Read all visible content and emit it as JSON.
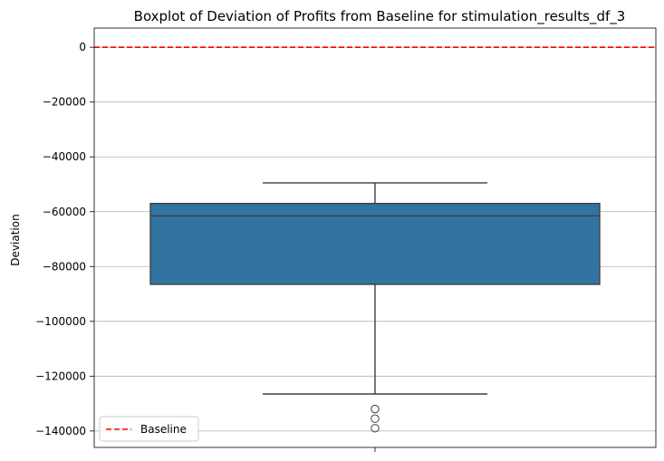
{
  "chart_data": {
    "type": "box",
    "title": "Boxplot of Deviation of Profits from Baseline for stimulation_results_df_3",
    "xlabel": "",
    "ylabel": "Deviation",
    "ylim": [
      -146000,
      7000
    ],
    "yticks": [
      0,
      -20000,
      -40000,
      -60000,
      -80000,
      -100000,
      -120000,
      -140000
    ],
    "ytick_labels": [
      "0",
      "−20000",
      "−40000",
      "−60000",
      "−80000",
      "−100000",
      "−120000",
      "−140000"
    ],
    "grid": "y",
    "box": {
      "whisker_high": -49500,
      "q3": -57000,
      "median": -61500,
      "q1": -86500,
      "whisker_low": -126500,
      "outliers": [
        -132000,
        -135500,
        -139000
      ],
      "color": "#3274a1"
    },
    "baseline": {
      "value": 0,
      "label": "Baseline",
      "color": "#ff0000",
      "style": "dashed"
    },
    "legend": {
      "placement": "lower-left",
      "entries": [
        "Baseline"
      ]
    }
  }
}
